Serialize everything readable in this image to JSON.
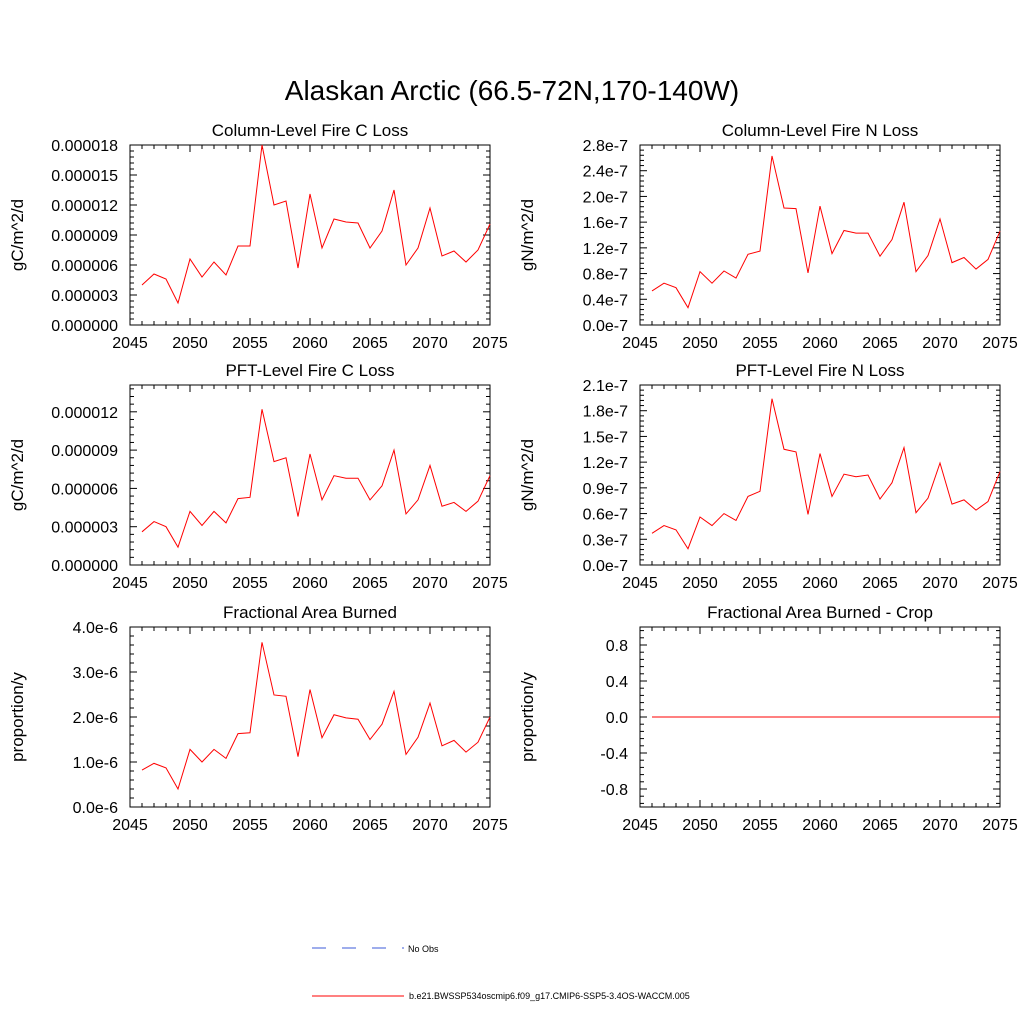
{
  "figure_title": "Alaskan Arctic (66.5-72N,170-140W)",
  "colors": {
    "series": "#ff0000",
    "obs": "#3d5bd9",
    "axis": "#000000"
  },
  "legend": {
    "obs_label": "No Obs",
    "model_label": "b.e21.BWSSP534oscmip6.f09_g17.CMIP6-SSP5-3.4OS-WACCM.005"
  },
  "chart_data": [
    {
      "id": "col_fire_c",
      "type": "line",
      "title": "Column-Level Fire C Loss",
      "ylabel": "gC/m^2/d",
      "xlim": [
        2045,
        2075
      ],
      "ylim": [
        0,
        1.8e-05
      ],
      "xticks": [
        "2045",
        "2050",
        "2055",
        "2060",
        "2065",
        "2070",
        "2075"
      ],
      "yticks": [
        "0.000000",
        "0.000003",
        "0.000006",
        "0.000009",
        "0.000012",
        "0.000015",
        "0.000018"
      ],
      "x": [
        2046,
        2047,
        2048,
        2049,
        2050,
        2051,
        2052,
        2053,
        2054,
        2055,
        2056,
        2057,
        2058,
        2059,
        2060,
        2061,
        2062,
        2063,
        2064,
        2065,
        2066,
        2067,
        2068,
        2069,
        2070,
        2071,
        2072,
        2073,
        2074,
        2075
      ],
      "values": [
        4e-06,
        5.1e-06,
        4.6e-06,
        2.2e-06,
        6.6e-06,
        4.8e-06,
        6.3e-06,
        5e-06,
        7.9e-06,
        7.9e-06,
        1.8e-05,
        1.2e-05,
        1.24e-05,
        5.7e-06,
        1.31e-05,
        7.7e-06,
        1.06e-05,
        1.03e-05,
        1.02e-05,
        7.7e-06,
        9.4e-06,
        1.35e-05,
        6e-06,
        7.7e-06,
        1.17e-05,
        6.9e-06,
        7.4e-06,
        6.3e-06,
        7.5e-06,
        1.01e-05
      ]
    },
    {
      "id": "col_fire_n",
      "type": "line",
      "title": "Column-Level Fire N Loss",
      "ylabel": "gN/m^2/d",
      "xlim": [
        2045,
        2075
      ],
      "ylim": [
        0,
        2.8e-07
      ],
      "xticks": [
        "2045",
        "2050",
        "2055",
        "2060",
        "2065",
        "2070",
        "2075"
      ],
      "yticks": [
        "0.0e-7",
        "0.4e-7",
        "0.8e-7",
        "1.2e-7",
        "1.6e-7",
        "2.0e-7",
        "2.4e-7",
        "2.8e-7"
      ],
      "x": [
        2046,
        2047,
        2048,
        2049,
        2050,
        2051,
        2052,
        2053,
        2054,
        2055,
        2056,
        2057,
        2058,
        2059,
        2060,
        2061,
        2062,
        2063,
        2064,
        2065,
        2066,
        2067,
        2068,
        2069,
        2070,
        2071,
        2072,
        2073,
        2074,
        2075
      ],
      "values": [
        5.3e-08,
        6.5e-08,
        5.8e-08,
        2.7e-08,
        8.3e-08,
        6.5e-08,
        8.4e-08,
        7.3e-08,
        1.1e-07,
        1.15e-07,
        2.63e-07,
        1.82e-07,
        1.81e-07,
        8.1e-08,
        1.85e-07,
        1.11e-07,
        1.47e-07,
        1.43e-07,
        1.43e-07,
        1.07e-07,
        1.33e-07,
        1.91e-07,
        8.3e-08,
        1.08e-07,
        1.65e-07,
        9.7e-08,
        1.05e-07,
        8.7e-08,
        1.02e-07,
        1.46e-07
      ]
    },
    {
      "id": "pft_fire_c",
      "type": "line",
      "title": "PFT-Level Fire C Loss",
      "ylabel": "gC/m^2/d",
      "xlim": [
        2045,
        2075
      ],
      "ylim": [
        0,
        1.41e-05
      ],
      "xticks": [
        "2045",
        "2050",
        "2055",
        "2060",
        "2065",
        "2070",
        "2075"
      ],
      "yticks": [
        "0.000000",
        "0.000003",
        "0.000006",
        "0.000009",
        "0.000012"
      ],
      "x": [
        2046,
        2047,
        2048,
        2049,
        2050,
        2051,
        2052,
        2053,
        2054,
        2055,
        2056,
        2057,
        2058,
        2059,
        2060,
        2061,
        2062,
        2063,
        2064,
        2065,
        2066,
        2067,
        2068,
        2069,
        2070,
        2071,
        2072,
        2073,
        2074,
        2075
      ],
      "values": [
        2.6e-06,
        3.4e-06,
        3e-06,
        1.4e-06,
        4.2e-06,
        3.1e-06,
        4.2e-06,
        3.3e-06,
        5.2e-06,
        5.3e-06,
        1.22e-05,
        8.1e-06,
        8.4e-06,
        3.8e-06,
        8.7e-06,
        5.1e-06,
        7e-06,
        6.8e-06,
        6.8e-06,
        5.1e-06,
        6.2e-06,
        9e-06,
        4e-06,
        5.1e-06,
        7.8e-06,
        4.6e-06,
        4.9e-06,
        4.2e-06,
        5e-06,
        7e-06
      ]
    },
    {
      "id": "pft_fire_n",
      "type": "line",
      "title": "PFT-Level Fire N Loss",
      "ylabel": "gN/m^2/d",
      "xlim": [
        2045,
        2075
      ],
      "ylim": [
        0,
        2.1e-07
      ],
      "xticks": [
        "2045",
        "2050",
        "2055",
        "2060",
        "2065",
        "2070",
        "2075"
      ],
      "yticks": [
        "0.0e-7",
        "0.3e-7",
        "0.6e-7",
        "0.9e-7",
        "1.2e-7",
        "1.5e-7",
        "1.8e-7",
        "2.1e-7"
      ],
      "x": [
        2046,
        2047,
        2048,
        2049,
        2050,
        2051,
        2052,
        2053,
        2054,
        2055,
        2056,
        2057,
        2058,
        2059,
        2060,
        2061,
        2062,
        2063,
        2064,
        2065,
        2066,
        2067,
        2068,
        2069,
        2070,
        2071,
        2072,
        2073,
        2074,
        2075
      ],
      "values": [
        3.7e-08,
        4.6e-08,
        4.1e-08,
        1.9e-08,
        5.6e-08,
        4.6e-08,
        6e-08,
        5.2e-08,
        8e-08,
        8.6e-08,
        1.94e-07,
        1.35e-07,
        1.32e-07,
        5.9e-08,
        1.3e-07,
        8e-08,
        1.06e-07,
        1.03e-07,
        1.05e-07,
        7.7e-08,
        9.6e-08,
        1.37e-07,
        6.1e-08,
        7.8e-08,
        1.19e-07,
        7.1e-08,
        7.6e-08,
        6.4e-08,
        7.4e-08,
        1.09e-07
      ]
    },
    {
      "id": "frac_area_burned",
      "type": "line",
      "title": "Fractional Area Burned",
      "ylabel": "proportion/y",
      "xlim": [
        2045,
        2075
      ],
      "ylim": [
        0,
        4e-06
      ],
      "xticks": [
        "2045",
        "2050",
        "2055",
        "2060",
        "2065",
        "2070",
        "2075"
      ],
      "yticks": [
        "0.0e-6",
        "1.0e-6",
        "2.0e-6",
        "3.0e-6",
        "4.0e-6"
      ],
      "x": [
        2046,
        2047,
        2048,
        2049,
        2050,
        2051,
        2052,
        2053,
        2054,
        2055,
        2056,
        2057,
        2058,
        2059,
        2060,
        2061,
        2062,
        2063,
        2064,
        2065,
        2066,
        2067,
        2068,
        2069,
        2070,
        2071,
        2072,
        2073,
        2074,
        2075
      ],
      "values": [
        8.2e-07,
        9.7e-07,
        8.7e-07,
        4e-07,
        1.28e-06,
        1e-06,
        1.28e-06,
        1.08e-06,
        1.63e-06,
        1.65e-06,
        3.66e-06,
        2.49e-06,
        2.46e-06,
        1.12e-06,
        2.61e-06,
        1.54e-06,
        2.05e-06,
        1.98e-06,
        1.95e-06,
        1.5e-06,
        1.84e-06,
        2.57e-06,
        1.17e-06,
        1.55e-06,
        2.31e-06,
        1.36e-06,
        1.48e-06,
        1.22e-06,
        1.44e-06,
        2e-06
      ]
    },
    {
      "id": "frac_area_burned_crop",
      "type": "line",
      "title": "Fractional Area Burned - Crop",
      "ylabel": "proportion/y",
      "xlim": [
        2045,
        2075
      ],
      "ylim": [
        -1.0,
        1.0
      ],
      "xticks": [
        "2045",
        "2050",
        "2055",
        "2060",
        "2065",
        "2070",
        "2075"
      ],
      "yticks": [
        "-0.8",
        "-0.4",
        "0.0",
        "0.4",
        "0.8"
      ],
      "x": [
        2046,
        2047,
        2048,
        2049,
        2050,
        2051,
        2052,
        2053,
        2054,
        2055,
        2056,
        2057,
        2058,
        2059,
        2060,
        2061,
        2062,
        2063,
        2064,
        2065,
        2066,
        2067,
        2068,
        2069,
        2070,
        2071,
        2072,
        2073,
        2074,
        2075
      ],
      "values": [
        0,
        0,
        0,
        0,
        0,
        0,
        0,
        0,
        0,
        0,
        0,
        0,
        0,
        0,
        0,
        0,
        0,
        0,
        0,
        0,
        0,
        0,
        0,
        0,
        0,
        0,
        0,
        0,
        0,
        0
      ]
    }
  ]
}
